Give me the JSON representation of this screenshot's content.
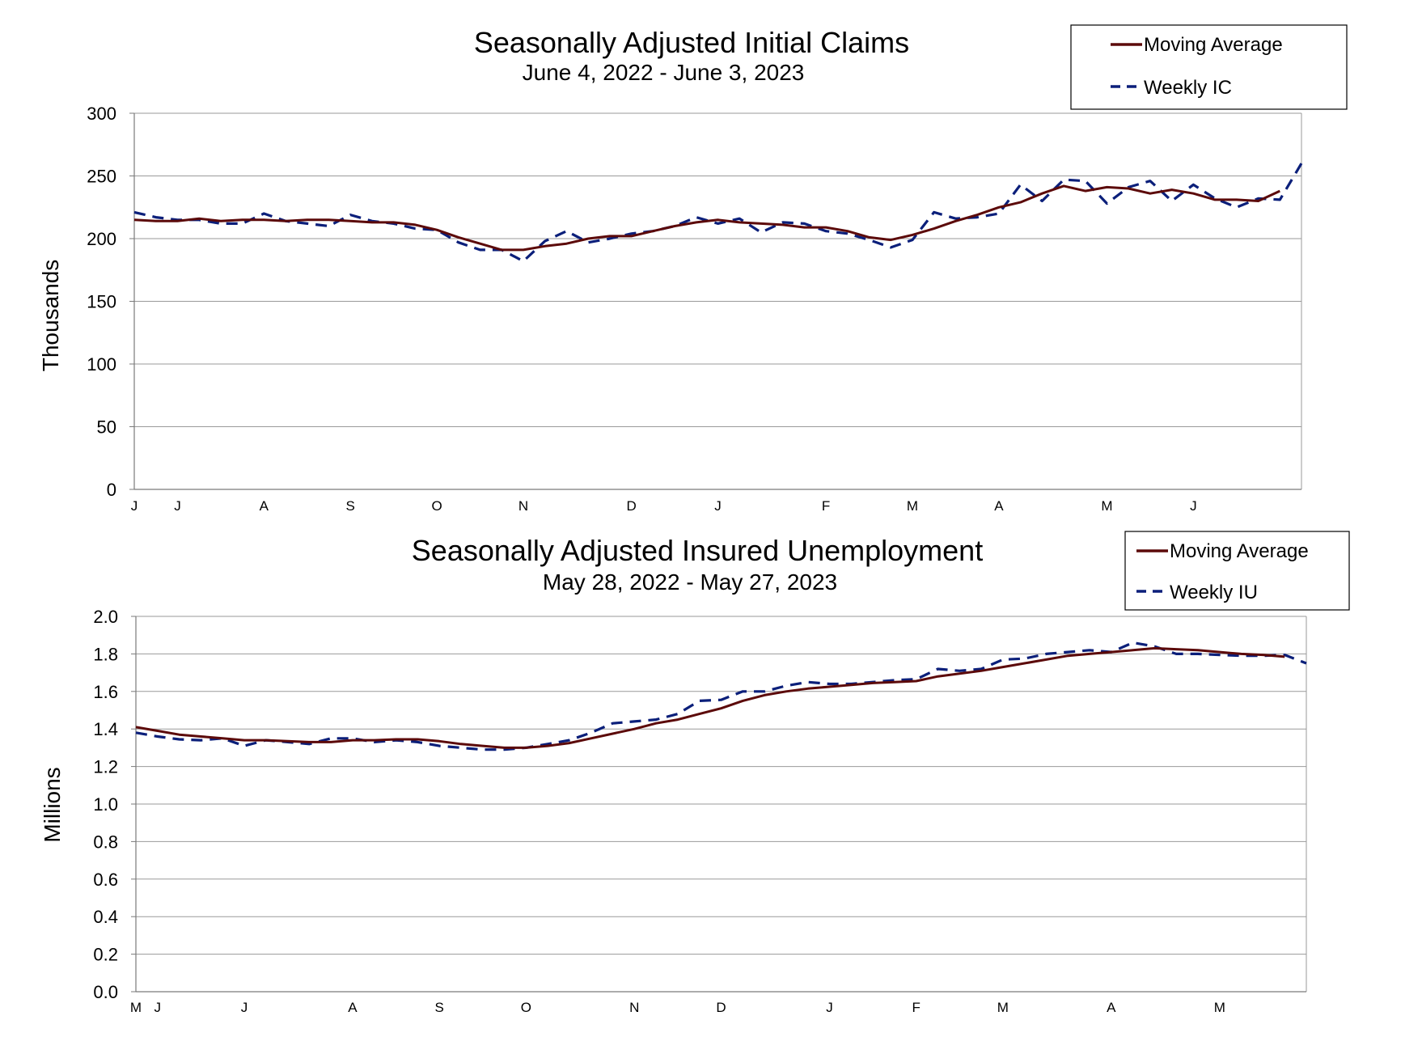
{
  "chart_data": [
    {
      "type": "line",
      "title": "Seasonally Adjusted Initial Claims",
      "subtitle": "June 4, 2022 - June 3, 2023",
      "ylabel": "Thousands",
      "ylim": [
        0,
        300
      ],
      "yticks": [
        "0",
        "50",
        "100",
        "150",
        "200",
        "250",
        "300"
      ],
      "grid": "horizontal",
      "legend_position": "top-right",
      "x_month_labels": [
        "J",
        "J",
        "A",
        "S",
        "O",
        "N",
        "D",
        "J",
        "F",
        "M",
        "A",
        "M",
        "J"
      ],
      "colors": {
        "moving_average": "#5c0a0a",
        "weekly": "#0b1f7a"
      },
      "series": [
        {
          "name": "Moving Average",
          "style": "solid",
          "values": [
            215,
            214,
            214,
            216,
            214,
            215,
            215,
            214,
            215,
            215,
            214,
            213,
            213,
            211,
            207,
            201,
            196,
            191,
            191,
            194,
            196,
            200,
            202,
            202,
            206,
            210,
            213,
            215,
            213,
            212,
            211,
            209,
            209,
            206,
            201,
            199,
            203,
            208,
            214,
            219,
            225,
            229,
            236,
            242,
            238,
            241,
            240,
            236,
            239,
            236,
            231,
            231,
            230,
            238
          ]
        },
        {
          "name": "Weekly IC",
          "style": "dashed",
          "values": [
            221,
            217,
            215,
            215,
            212,
            212,
            220,
            214,
            212,
            210,
            219,
            214,
            212,
            208,
            207,
            197,
            191,
            191,
            182,
            198,
            206,
            197,
            200,
            204,
            206,
            210,
            217,
            212,
            216,
            205,
            213,
            212,
            206,
            204,
            199,
            193,
            199,
            221,
            216,
            217,
            220,
            243,
            230,
            247,
            246,
            228,
            241,
            246,
            230,
            243,
            232,
            225,
            232,
            231,
            260
          ]
        }
      ]
    },
    {
      "type": "line",
      "title": "Seasonally Adjusted Insured Unemployment",
      "subtitle": "May 28, 2022 - May 27, 2023",
      "ylabel": "Millions",
      "ylim": [
        0,
        2.0
      ],
      "yticks": [
        "0.0",
        "0.2",
        "0.4",
        "0.6",
        "0.8",
        "1.0",
        "1.2",
        "1.4",
        "1.6",
        "1.8",
        "2.0"
      ],
      "grid": "horizontal",
      "legend_position": "top-right",
      "x_month_labels": [
        "M",
        "J",
        "J",
        "A",
        "S",
        "O",
        "N",
        "D",
        "J",
        "F",
        "M",
        "A",
        "M"
      ],
      "colors": {
        "moving_average": "#5c0a0a",
        "weekly": "#0b1f7a"
      },
      "series": [
        {
          "name": "Moving Average",
          "style": "solid",
          "values": [
            1.41,
            1.39,
            1.37,
            1.36,
            1.35,
            1.34,
            1.34,
            1.335,
            1.33,
            1.33,
            1.34,
            1.34,
            1.345,
            1.345,
            1.335,
            1.32,
            1.31,
            1.3,
            1.3,
            1.31,
            1.325,
            1.35,
            1.375,
            1.4,
            1.43,
            1.45,
            1.48,
            1.51,
            1.55,
            1.58,
            1.6,
            1.615,
            1.625,
            1.635,
            1.645,
            1.65,
            1.655,
            1.68,
            1.695,
            1.71,
            1.73,
            1.75,
            1.77,
            1.79,
            1.8,
            1.81,
            1.82,
            1.83,
            1.825,
            1.82,
            1.81,
            1.8,
            1.795,
            1.785
          ]
        },
        {
          "name": "Weekly IU",
          "style": "dashed",
          "values": [
            1.38,
            1.36,
            1.345,
            1.34,
            1.35,
            1.31,
            1.34,
            1.33,
            1.32,
            1.35,
            1.35,
            1.33,
            1.34,
            1.33,
            1.31,
            1.3,
            1.29,
            1.29,
            1.3,
            1.32,
            1.34,
            1.38,
            1.43,
            1.44,
            1.45,
            1.48,
            1.55,
            1.555,
            1.6,
            1.6,
            1.63,
            1.65,
            1.64,
            1.64,
            1.65,
            1.66,
            1.665,
            1.72,
            1.71,
            1.72,
            1.77,
            1.775,
            1.8,
            1.81,
            1.82,
            1.81,
            1.86,
            1.84,
            1.8,
            1.8,
            1.795,
            1.79,
            1.79,
            1.795,
            1.75
          ]
        }
      ]
    }
  ]
}
